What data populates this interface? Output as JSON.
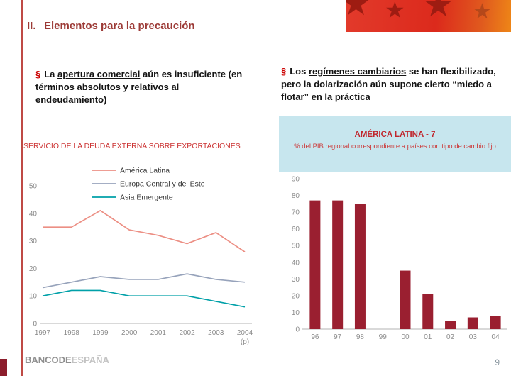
{
  "slide": {
    "header_number": "II.",
    "header_title": "Elementos para la precaución",
    "page_number": "9",
    "logo_primary": "BANCODE",
    "logo_secondary": "ESPAÑA"
  },
  "bullets": {
    "left": {
      "marker": "§",
      "prefix": "La ",
      "underlined": "apertura comercial",
      "rest": " aún es insuficiente (en términos absolutos y relativos al endeudamiento)"
    },
    "right": {
      "marker": "§",
      "prefix": "Los ",
      "underlined": "regímenes cambiarios",
      "rest": " se han flexibilizado, pero la dolarización aún supone cierto “miedo a flotar” en la práctica"
    }
  },
  "chart_data": [
    {
      "type": "line",
      "title": "SERVICIO DE LA DEUDA EXTERNA SOBRE EXPORTACIONES",
      "categories": [
        "1997",
        "1998",
        "1999",
        "2000",
        "2001",
        "2002",
        "2003",
        "2004"
      ],
      "x_note": "(p)",
      "xlabel": "",
      "ylabel": "",
      "ylim": [
        0,
        50
      ],
      "yticks": [
        0,
        10,
        20,
        30,
        40,
        50
      ],
      "grid": false,
      "legend_position": "top-inside",
      "series": [
        {
          "name": "América Latina",
          "color": "#ec8f84",
          "values": [
            35,
            35,
            41,
            34,
            32,
            29,
            33,
            26
          ]
        },
        {
          "name": "Europa Central y del Este",
          "color": "#97a3bb",
          "values": [
            13,
            15,
            17,
            16,
            16,
            18,
            16,
            15
          ]
        },
        {
          "name": "Asia Emergente",
          "color": "#00a0a8",
          "values": [
            10,
            12,
            12,
            10,
            10,
            10,
            8,
            6
          ]
        }
      ]
    },
    {
      "type": "bar",
      "title": "AMÉRICA LATINA - 7",
      "subtitle": "% del PIB regional correspondiente a países con tipo de cambio fijo",
      "categories": [
        "96",
        "97",
        "98",
        "99",
        "00",
        "01",
        "02",
        "03",
        "04"
      ],
      "values": [
        77,
        77,
        75,
        0,
        35,
        21,
        5,
        7,
        8
      ],
      "ylim": [
        0,
        90
      ],
      "yticks": [
        0,
        10,
        20,
        30,
        40,
        50,
        60,
        70,
        80,
        90
      ],
      "bar_color": "#9a1f30",
      "grid": false
    }
  ]
}
